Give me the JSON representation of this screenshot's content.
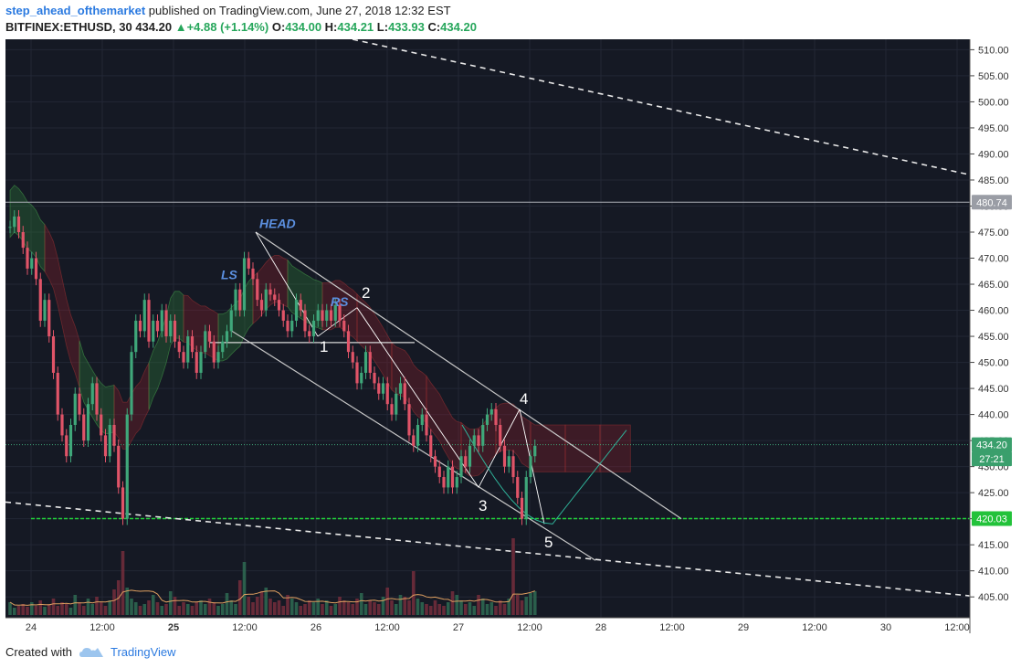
{
  "header": {
    "author": "step_ahead_ofthemarket",
    "published_text": "published on TradingView.com, June 27, 2018 12:32 EST",
    "symbol": "BITFINEX:ETHUSD, 30",
    "last": "434.20",
    "change": "+4.88 (+1.14%)",
    "open_label": "O:",
    "open": "434.00",
    "high_label": "H:",
    "high": "434.21",
    "low_label": "L:",
    "low": "433.93",
    "close_label": "C:",
    "close": "434.20"
  },
  "footer": {
    "created_with": "Created with",
    "brand": "TradingView"
  },
  "colors": {
    "background": "#151924",
    "up": "#3fa77a",
    "down": "#e05468",
    "cloud_green": "#2f7a3a",
    "cloud_red": "#8a1f2a",
    "green_line": "#22d23a",
    "price_label_bg": "#3a9f6c",
    "accent": "#2b7ae0"
  },
  "chart_data": {
    "type": "candlestick",
    "symbol": "BITFINEX:ETHUSD",
    "interval": "30",
    "ylim": [
      401,
      512
    ],
    "y_ticks": [
      "510.00",
      "505.00",
      "500.00",
      "495.00",
      "490.00",
      "485.00",
      "480.00",
      "475.00",
      "470.00",
      "465.00",
      "460.00",
      "455.00",
      "450.00",
      "445.00",
      "440.00",
      "435.00",
      "430.00",
      "425.00",
      "420.00",
      "415.00",
      "410.00",
      "405.00"
    ],
    "x_tick_labels": [
      "24",
      "12:00",
      "25",
      "12:00",
      "26",
      "12:00",
      "27",
      "12:00",
      "28",
      "12:00",
      "29",
      "12:00",
      "30",
      "12:00"
    ],
    "x_tick_bold": [
      false,
      false,
      true,
      false,
      false,
      false,
      false,
      false,
      false,
      false,
      false,
      false,
      false,
      false
    ],
    "price_labels": [
      {
        "value": 480.74,
        "text": "480.74",
        "style": "gray"
      },
      {
        "value": 434.2,
        "text": "434.20",
        "style": "green"
      },
      {
        "value": 431.5,
        "text": "27:21",
        "style": "green"
      },
      {
        "value": 420.03,
        "text": "420.03",
        "style": "green"
      }
    ],
    "horizontal_lines": [
      {
        "value": 480.74,
        "color": "#b0b3ba",
        "style": "solid"
      },
      {
        "value": 434.2,
        "color": "#3fa77a",
        "style": "dotted"
      },
      {
        "value": 420.03,
        "color": "#22d23a",
        "style": "dashed"
      }
    ],
    "closes": [
      476,
      478,
      475,
      472,
      468,
      470,
      466,
      458,
      462,
      455,
      448,
      440,
      436,
      432,
      438,
      444,
      440,
      435,
      442,
      446,
      440,
      436,
      432,
      438,
      434,
      426,
      420,
      440,
      452,
      458,
      456,
      462,
      454,
      458,
      456,
      460,
      455,
      458,
      454,
      452,
      450,
      455,
      452,
      448,
      452,
      456,
      454,
      450,
      452,
      454,
      456,
      460,
      464,
      460,
      470,
      468,
      466,
      462,
      460,
      464,
      463,
      462,
      460,
      458,
      456,
      458,
      462,
      460,
      456,
      455,
      458,
      460,
      458,
      460,
      458,
      461,
      458,
      456,
      452,
      450,
      446,
      448,
      452,
      448,
      446,
      444,
      446,
      442,
      440,
      444,
      446,
      442,
      436,
      434,
      438,
      440,
      436,
      432,
      430,
      428,
      426,
      430,
      426,
      428,
      432,
      430,
      434,
      436,
      434,
      438,
      440,
      441,
      438,
      434,
      430,
      432,
      428,
      424,
      420,
      428,
      432,
      434
    ],
    "volumes": [
      14,
      8,
      10,
      12,
      9,
      14,
      10,
      16,
      9,
      12,
      18,
      10,
      14,
      12,
      8,
      22,
      14,
      10,
      18,
      12,
      20,
      14,
      10,
      16,
      28,
      38,
      70,
      30,
      18,
      14,
      10,
      12,
      16,
      22,
      14,
      10,
      12,
      26,
      20,
      10,
      14,
      12,
      10,
      14,
      16,
      12,
      18,
      14,
      10,
      12,
      24,
      16,
      12,
      38,
      58,
      20,
      14,
      20,
      26,
      30,
      18,
      14,
      16,
      10,
      22,
      18,
      14,
      10,
      12,
      16,
      14,
      18,
      12,
      16,
      10,
      12,
      20,
      16,
      14,
      12,
      18,
      24,
      12,
      16,
      14,
      12,
      20,
      30,
      16,
      12,
      22,
      20,
      16,
      48,
      18,
      14,
      12,
      10,
      16,
      12,
      10,
      14,
      26,
      22,
      16,
      12,
      14,
      10,
      22,
      18,
      12,
      14,
      10,
      16,
      12,
      18,
      84,
      22,
      16,
      20,
      24,
      26
    ],
    "annotations": [
      {
        "text": "HEAD",
        "style": "italic-blue"
      },
      {
        "text": "LS",
        "style": "italic-blue"
      },
      {
        "text": "RS",
        "style": "italic-blue"
      },
      {
        "text": "1",
        "style": "white"
      },
      {
        "text": "2",
        "style": "white"
      },
      {
        "text": "3",
        "style": "white"
      },
      {
        "text": "4",
        "style": "white"
      },
      {
        "text": "5",
        "style": "white"
      }
    ]
  }
}
